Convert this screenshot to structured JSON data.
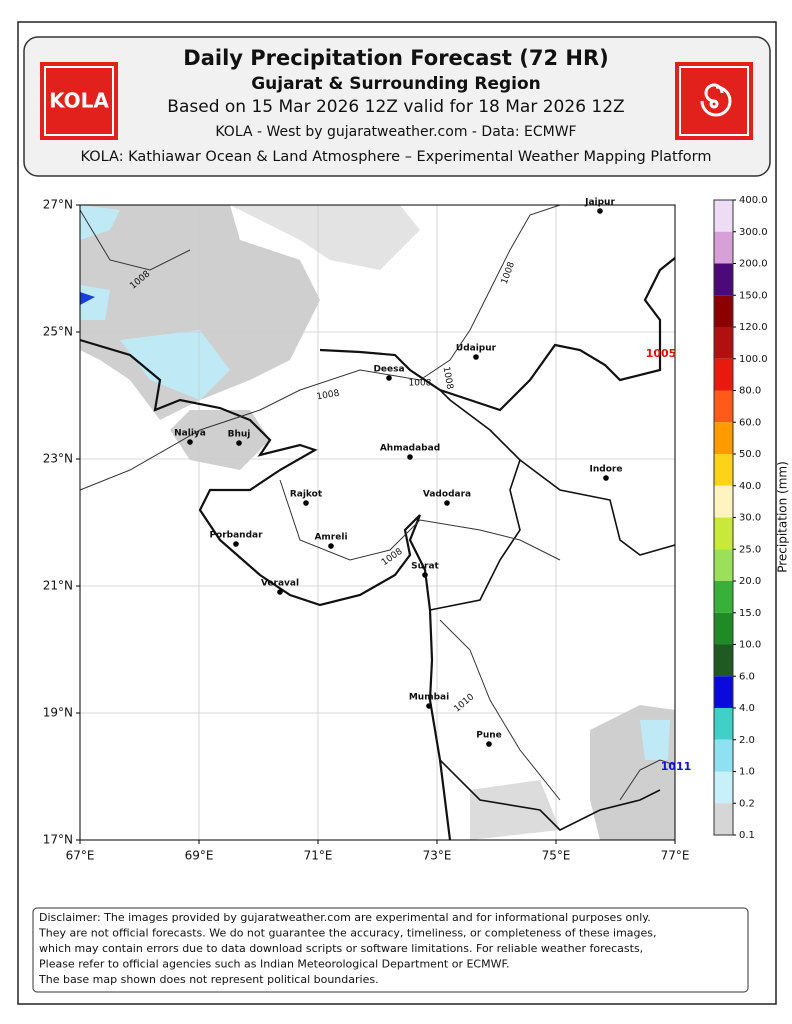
{
  "header": {
    "logo_text": "KOLA",
    "title": "Daily Precipitation Forecast (72 HR)",
    "subtitle": "Gujarat & Surrounding Region",
    "validity": "Based on 15 Mar 2026 12Z valid for 18 Mar 2026 12Z",
    "source": "KOLA - West by gujaratweather.com  -  Data: ECMWF",
    "platform": "KOLA: Kathiawar Ocean & Land Atmosphere – Experimental Weather Mapping Platform"
  },
  "map": {
    "lon_ticks": [
      "67°E",
      "69°E",
      "71°E",
      "73°E",
      "75°E",
      "77°E"
    ],
    "lat_ticks": [
      "27°N",
      "25°N",
      "23°N",
      "21°N",
      "19°N",
      "17°N"
    ],
    "cities": [
      "Jaipur",
      "Udaipur",
      "Deesa",
      "Ahmadabad",
      "Indore",
      "Naliya",
      "Bhuj",
      "Rajkot",
      "Vadodara",
      "Porbandar",
      "Amreli",
      "Veraval",
      "Surat",
      "Mumbai",
      "Pune"
    ],
    "isobar_labels": [
      "1008",
      "1008",
      "1008",
      "1008",
      "1008",
      "1008",
      "1010"
    ],
    "low_label": "1005",
    "high_label": "1011"
  },
  "colorbar": {
    "label": "Precipitation (mm)",
    "ticks": [
      "400.0",
      "300.0",
      "200.0",
      "150.0",
      "120.0",
      "100.0",
      "80.0",
      "60.0",
      "50.0",
      "40.0",
      "30.0",
      "25.0",
      "20.0",
      "15.0",
      "10.0",
      "6.0",
      "4.0",
      "2.0",
      "1.0",
      "0.2",
      "0.1"
    ]
  },
  "disclaimer": [
    "Disclaimer: The images provided by gujaratweather.com are experimental and for informational purposes only.",
    "They are not official forecasts. We do not guarantee the accuracy, timeliness, or completeness of these images,",
    "which may contain errors due to data download scripts or software limitations. For reliable weather forecasts,",
    "Please refer to official agencies such as Indian Meteorological Department or ECMWF.",
    "The base map shown does not represent political boundaries."
  ]
}
